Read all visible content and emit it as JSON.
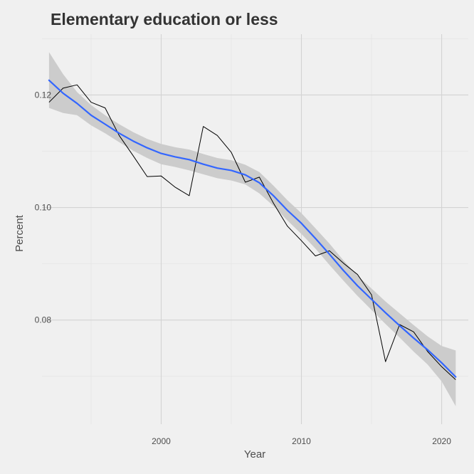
{
  "chart_data": {
    "type": "line",
    "title": "Elementary education or less",
    "xlabel": "Year",
    "ylabel": "Percent",
    "xlim": [
      1991.5,
      2021.9
    ],
    "ylim": [
      0.0615,
      0.1308
    ],
    "x_ticks": [
      2000,
      2010,
      2020
    ],
    "x_tick_labels": [
      "2000",
      "2010",
      "2020"
    ],
    "y_ticks": [
      0.08,
      0.1,
      0.12
    ],
    "y_tick_labels": [
      "0.08",
      "0.10",
      "0.12"
    ],
    "grid": true,
    "legend": "none",
    "series": [
      {
        "style": "observed",
        "color": "#000000",
        "x": [
          1992,
          1993,
          1994,
          1995,
          1996,
          1997,
          1998,
          1999,
          2000,
          2001,
          2002,
          2003,
          2004,
          2005,
          2006,
          2007,
          2008,
          2009,
          2010,
          2011,
          2012,
          2013,
          2014,
          2015,
          2016,
          2017,
          2018,
          2019,
          2020,
          2021
        ],
        "values": [
          0.1187,
          0.1212,
          0.1218,
          0.1187,
          0.1177,
          0.1128,
          0.1092,
          0.1055,
          0.1056,
          0.1036,
          0.1021,
          0.1144,
          0.1128,
          0.1098,
          0.1045,
          0.1054,
          0.1008,
          0.0967,
          0.0941,
          0.0914,
          0.0923,
          0.0901,
          0.0881,
          0.0845,
          0.0726,
          0.0792,
          0.0779,
          0.0744,
          0.0717,
          0.0694
        ]
      },
      {
        "style": "smooth",
        "color": "#3366ff",
        "band_color": "#cccccc",
        "x": [
          1992,
          1993,
          1994,
          1995,
          1996,
          1997,
          1998,
          1999,
          2000,
          2001,
          2002,
          2003,
          2004,
          2005,
          2006,
          2007,
          2008,
          2009,
          2010,
          2011,
          2012,
          2013,
          2014,
          2015,
          2016,
          2017,
          2018,
          2019,
          2020,
          2021
        ],
        "values": [
          0.1226,
          0.1203,
          0.1185,
          0.1164,
          0.1148,
          0.1132,
          0.1118,
          0.1106,
          0.1096,
          0.109,
          0.1085,
          0.1077,
          0.107,
          0.1066,
          0.1058,
          0.1044,
          0.1021,
          0.0995,
          0.0972,
          0.0945,
          0.0917,
          0.0888,
          0.0861,
          0.0837,
          0.0813,
          0.079,
          0.0768,
          0.0747,
          0.0724,
          0.0699
        ],
        "ci_upper": [
          0.1276,
          0.1237,
          0.1205,
          0.1182,
          0.1164,
          0.1148,
          0.1134,
          0.1122,
          0.1113,
          0.1107,
          0.1103,
          0.1095,
          0.1088,
          0.1084,
          0.1076,
          0.1063,
          0.1039,
          0.1013,
          0.099,
          0.0963,
          0.0936,
          0.0906,
          0.0879,
          0.0856,
          0.0833,
          0.0812,
          0.0791,
          0.0771,
          0.0754,
          0.0746
        ],
        "ci_lower": [
          0.1177,
          0.1168,
          0.1164,
          0.1146,
          0.1132,
          0.1116,
          0.1101,
          0.1088,
          0.1077,
          0.1072,
          0.1066,
          0.1059,
          0.1052,
          0.1048,
          0.1041,
          0.1025,
          0.1003,
          0.0977,
          0.0953,
          0.0927,
          0.0898,
          0.087,
          0.0843,
          0.0818,
          0.0793,
          0.0769,
          0.0744,
          0.0721,
          0.0691,
          0.0647
        ]
      }
    ]
  }
}
